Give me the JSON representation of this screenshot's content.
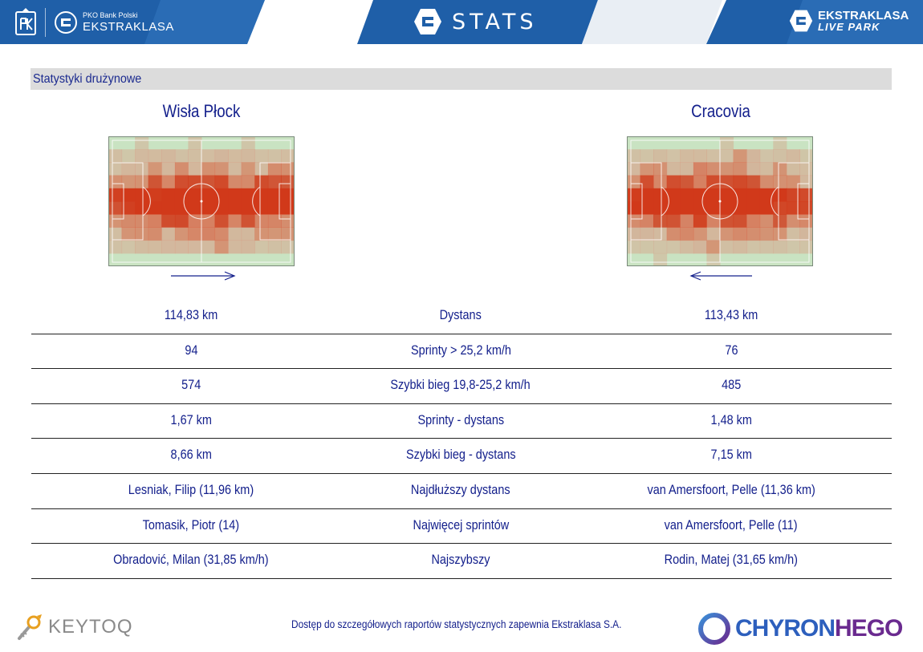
{
  "header": {
    "pko_label": "PKO Bank Polski",
    "league_name": "EKSTRAKLASA",
    "stats_title": "STATS",
    "livepark_top": "EKSTRAKLASA",
    "livepark_bottom": "LIVE PARK",
    "colors": {
      "primary": "#1f5fa8",
      "accent": "#3f86cf"
    }
  },
  "section": {
    "title": "Statystyki drużynowe"
  },
  "teams": {
    "home": {
      "name": "Wisła Płock",
      "direction": "right"
    },
    "away": {
      "name": "Cracovia",
      "direction": "left"
    }
  },
  "stats": [
    {
      "home": "114,83 km",
      "label": "Dystans",
      "away": "113,43 km"
    },
    {
      "home": "94",
      "label": "Sprinty > 25,2 km/h",
      "away": "76"
    },
    {
      "home": "574",
      "label": "Szybki bieg 19,8-25,2 km/h",
      "away": "485"
    },
    {
      "home": "1,67 km",
      "label": "Sprinty - dystans",
      "away": "1,48 km"
    },
    {
      "home": "8,66 km",
      "label": "Szybki bieg - dystans",
      "away": "7,15 km"
    },
    {
      "home": "Lesniak, Filip (11,96 km)",
      "label": "Najdłuższy dystans",
      "away": "van Amersfoort, Pelle (11,36 km)"
    },
    {
      "home": "Tomasik, Piotr (14)",
      "label": "Najwięcej sprintów",
      "away": "van Amersfoort, Pelle (11)"
    },
    {
      "home": "Obradović, Milan (31,85 km/h)",
      "label": "Najszybszy",
      "away": "Rodin, Matej (31,65 km/h)"
    }
  ],
  "footer": {
    "note": "Dostęp do szczegółowych raportów statystycznych zapewnia Ekstraklasa S.A.",
    "sponsor_left": "KEYTOQ",
    "sponsor_right_a": "CHYRON",
    "sponsor_right_b": "HEGO"
  }
}
